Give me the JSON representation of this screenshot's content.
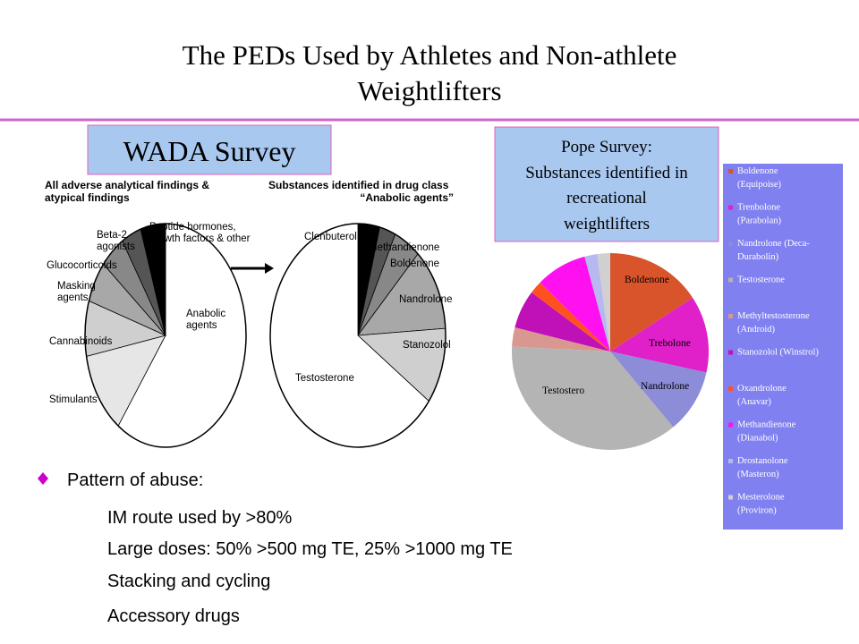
{
  "title": [
    "The PEDs Used by Athletes and Non-athlete",
    "Weightlifters"
  ],
  "wada_label": "WADA Survey",
  "pope_label": [
    "Pope Survey:",
    "Substances identified in",
    "recreational",
    "weightlifters"
  ],
  "bullets": {
    "heading": "Pattern of abuse:",
    "items": [
      "IM route used by >80%",
      "Large doses: 50% >500 mg TE, 25% >1000 mg TE",
      "Stacking and cycling",
      "Accessory drugs"
    ]
  },
  "chart_data": [
    {
      "type": "pie",
      "title": [
        "All adverse analytical findings &",
        "atypical findings"
      ],
      "categories": [
        [
          "Anabolic",
          "agents"
        ],
        [
          "Stimulants"
        ],
        [
          "Cannabinoids"
        ],
        [
          "Masking",
          "agents"
        ],
        [
          "Glucocorticoids"
        ],
        [
          "Beta-2",
          "agonists"
        ],
        [
          "Peptide hormones,",
          "growth factors & other"
        ]
      ],
      "values": [
        60,
        12,
        8,
        6,
        5,
        4,
        5
      ],
      "colors": [
        "#ffffff",
        "#e6e6e6",
        "#cfcfcf",
        "#a8a8a8",
        "#888888",
        "#555555",
        "#000000"
      ]
    },
    {
      "type": "pie",
      "title": [
        "Substances identified in drug class",
        "“Anabolic agents”"
      ],
      "categories": [
        [
          "Clenbuterol"
        ],
        [
          "Methandienone"
        ],
        [
          "Boldenone"
        ],
        [
          "Nandrolone"
        ],
        [
          "Stanozolol"
        ],
        [
          "Testosterone"
        ]
      ],
      "values": [
        4,
        3,
        5,
        12,
        11,
        65
      ],
      "colors": [
        "#000000",
        "#555555",
        "#888888",
        "#a8a8a8",
        "#cfcfcf",
        "#ffffff"
      ]
    },
    {
      "type": "pie",
      "categories": [
        [
          "Boldenone",
          "(Equipoise)"
        ],
        [
          "Trenbolone",
          "(Parabolan)"
        ],
        [
          "Nandrolone (Deca-",
          "Durabolin)"
        ],
        [
          "Testosterone"
        ],
        [
          "Methyltestosterone",
          "(Android)"
        ],
        [
          "Stanozolol (Winstrol)"
        ],
        [
          "Oxandrolone",
          "(Anavar)"
        ],
        [
          "Methandienone",
          "(Dianabol)"
        ],
        [
          "Drostanolone",
          "(Masteron)"
        ],
        [
          "Mesterolone",
          "(Proviron)"
        ]
      ],
      "values": [
        15,
        12,
        10,
        35,
        3,
        6,
        2,
        8,
        2,
        2
      ],
      "slice_labels": [
        "Boldenone",
        "Trebolone",
        "Nandrolone",
        "Testostero",
        null,
        null,
        null,
        null,
        null,
        null
      ],
      "colors": [
        "#d9542b",
        "#e020c8",
        "#8c8cd8",
        "#b4b4b4",
        "#d89890",
        "#c010b8",
        "#ff5020",
        "#ff10f0",
        "#b8b8f0",
        "#d0d0d0"
      ]
    }
  ]
}
